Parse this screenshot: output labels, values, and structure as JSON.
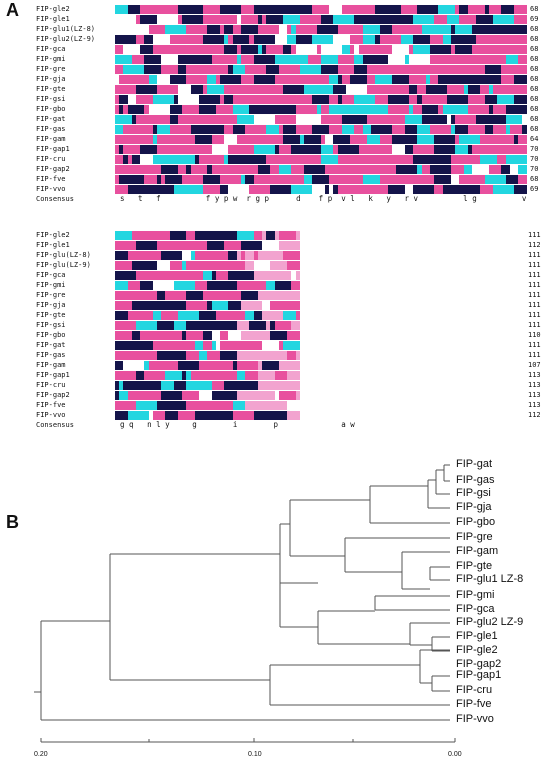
{
  "panel_a_label": "A",
  "panel_b_label": "B",
  "consensus_label": "Consensus",
  "block1": {
    "names": [
      "FIP-gle2",
      "FIP-gle1",
      "FIP-glu1(LZ-8)",
      "FIP-glu2(LZ-9)",
      "FIP-gca",
      "FIP-gmi",
      "FIP-gre",
      "FIP-gja",
      "FIP-gte",
      "FIP-gsi",
      "FIP-gbo",
      "FIP-gat",
      "FIP-gas",
      "FIP-gam",
      "FIP-gap1",
      "FIP-cru",
      "FIP-gap2",
      "FIP-fve",
      "FIP-vvo"
    ],
    "numbers": [
      "68",
      "69",
      "68",
      "68",
      "68",
      "68",
      "68",
      "68",
      "68",
      "68",
      "68",
      "68",
      "68",
      "64",
      "70",
      "70",
      "70",
      "68",
      "69"
    ],
    "consensus": "s   t   f          f y p w  r g p      d    f p  v l   k   y   r v          l g          v"
  },
  "block2": {
    "names": [
      "FIP-gle2",
      "FIP-gle1",
      "FIP-glu(LZ-8)",
      "FIP-glu(LZ-9)",
      "FIP-gca",
      "FIP-gmi",
      "FIP-gre",
      "FIP-gja",
      "FIP-gte",
      "FIP-gsi",
      "FIP-gbo",
      "FIP-gat",
      "FIP-gas",
      "FIP-gam",
      "FIP-gap1",
      "FIP-cru",
      "FIP-gap2",
      "FIP-fve",
      "FIP-vvo"
    ],
    "numbers": [
      "111",
      "112",
      "111",
      "111",
      "111",
      "111",
      "111",
      "111",
      "111",
      "111",
      "110",
      "111",
      "111",
      "107",
      "113",
      "113",
      "113",
      "113",
      "112"
    ],
    "consensus": "g q   n l y     g        i        p              a w"
  },
  "tree": {
    "tips": [
      "FIP-gat",
      "FIP-gas",
      "FIP-gsi",
      "FIP-gja",
      "FIP-gbo",
      "FIP-gre",
      "FIP-gam",
      "FIP-gte",
      "FIP-glu1 LZ-8",
      "FIP-gmi",
      "FIP-gca",
      "FIP-glu2 LZ-9",
      "FIP-gle1",
      "FIP-gle2",
      "FIP-gap2",
      "FIP-gap1",
      "FIP-cru",
      "FIP-fve",
      "FIP-vvo"
    ],
    "scale_ticks": [
      "0.20",
      "0.10",
      "0.00"
    ],
    "colors": {
      "magenta": "#e8509e",
      "cyan": "#22d6e0",
      "navy": "#14144a",
      "pink": "#f2a3cf"
    }
  }
}
